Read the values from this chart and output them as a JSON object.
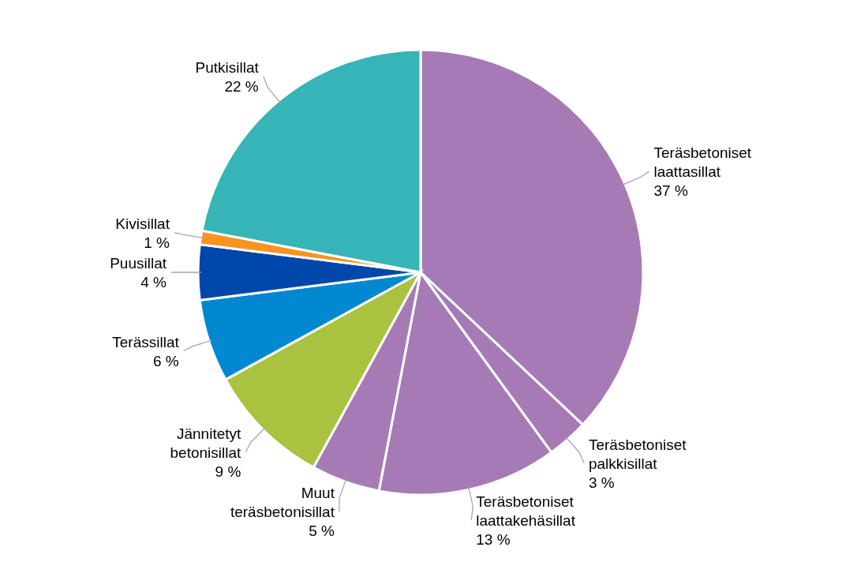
{
  "chart_data": {
    "type": "pie",
    "categories": [
      "Teräsbetoniset laattasillat",
      "Teräsbetoniset palkkisillat",
      "Teräsbetoniset laattakehäsillat",
      "Muut teräsbetonisillat",
      "Jännitetyt betonisillat",
      "Terässillat",
      "Puusillat",
      "Kivisillat",
      "Putkisillat"
    ],
    "values": [
      37,
      3,
      13,
      5,
      9,
      6,
      4,
      1,
      22
    ],
    "value_labels": [
      "37 %",
      "3 %",
      "13 %",
      "5 %",
      "9 %",
      "6 %",
      "4 %",
      "1 %",
      "22 %"
    ],
    "colors": [
      "#a67bb5",
      "#a67bb5",
      "#a67bb5",
      "#a67bb5",
      "#a9c23f",
      "#0288d1",
      "#0047ab",
      "#f7941d",
      "#36b4b6"
    ]
  }
}
